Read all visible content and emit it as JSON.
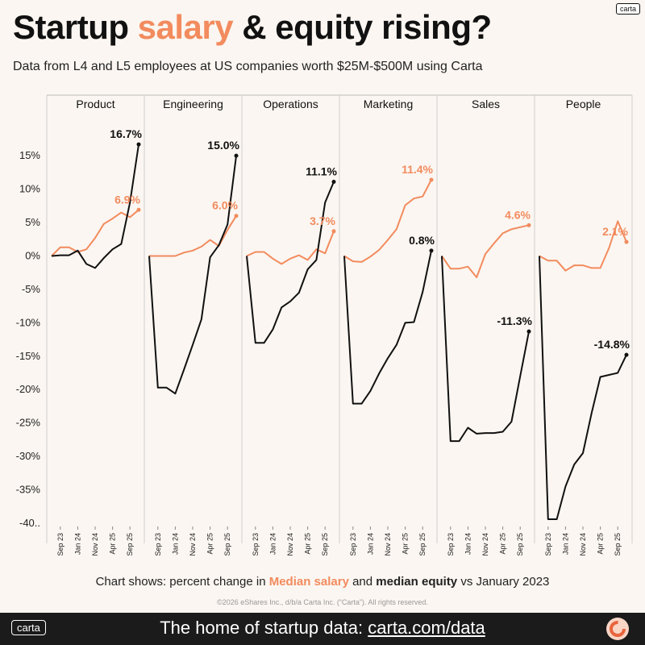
{
  "header": {
    "logo_text": "carta",
    "title_part1": "Startup ",
    "title_accent": "salary",
    "title_part2": " & equity rising?",
    "subtitle": "Data from L4 and L5 employees at US companies worth $25M-$500M using Carta"
  },
  "caption": {
    "prefix": "Chart shows: percent change in ",
    "salary_label": "Median salary",
    "mid": " and ",
    "equity_label": "median equity",
    "suffix": " vs January 2023"
  },
  "copyright": "©2026 eShares Inc., d/b/a Carta Inc. (“Carta”). All rights reserved.",
  "footer": {
    "logo_text": "carta",
    "text": "The home of startup data: ",
    "link": "carta.com/data"
  },
  "colors": {
    "salary": "#f28b5e",
    "equity": "#111111",
    "background": "#fbf6f1"
  },
  "chart_data": {
    "type": "line",
    "ylim": [
      -40,
      19
    ],
    "y_ticks": [
      15,
      10,
      5,
      0,
      -5,
      -10,
      -15,
      -20,
      -25,
      -30,
      -35,
      -40
    ],
    "y_tick_labels": [
      "15%",
      "10%",
      "5%",
      "0%",
      "-5%",
      "-10%",
      "-15%",
      "-20%",
      "-25%",
      "-30%",
      "-35%",
      "-40.."
    ],
    "x_tick_labels": [
      "Sep 23",
      "Jan 24",
      "Nov 24",
      "Apr 25",
      "Sep 25"
    ],
    "x_tick_positions": [
      1,
      3,
      5,
      7,
      9
    ],
    "num_points": 11,
    "grid": false,
    "legend": "caption below chart",
    "panels": [
      {
        "name": "Product",
        "salary": [
          0,
          1.3,
          1.3,
          0.6,
          1,
          2.7,
          4.8,
          5.6,
          6.5,
          5.8,
          6.9
        ],
        "equity": [
          0,
          0.1,
          0.1,
          0.8,
          -1.2,
          -1.8,
          -0.3,
          1,
          1.8,
          8,
          16.7
        ],
        "salary_label": "6.9%",
        "equity_label": "16.7%"
      },
      {
        "name": "Engineering",
        "salary": [
          0,
          0,
          0,
          0,
          0.5,
          0.8,
          1.4,
          2.4,
          1.5,
          3.9,
          6.0
        ],
        "equity": [
          0,
          -19.7,
          -19.7,
          -20.6,
          -17,
          -13.3,
          -9.5,
          -0.2,
          1.6,
          4.7,
          15.0
        ],
        "salary_label": "6.0%",
        "equity_label": "15.0%"
      },
      {
        "name": "Operations",
        "salary": [
          0,
          0.6,
          0.6,
          -0.4,
          -1.2,
          -0.4,
          0.1,
          -0.6,
          1,
          0.4,
          3.7
        ],
        "equity": [
          0,
          -13,
          -13,
          -11,
          -7.7,
          -6.8,
          -5.5,
          -2,
          -0.6,
          8,
          11.1
        ],
        "salary_label": "3.7%",
        "equity_label": "11.1%"
      },
      {
        "name": "Marketing",
        "salary": [
          0,
          -0.8,
          -0.9,
          -0.1,
          0.9,
          2.4,
          4,
          7.6,
          8.6,
          8.9,
          11.4
        ],
        "equity": [
          0,
          -22.1,
          -22.1,
          -20.2,
          -17.6,
          -15.3,
          -13.3,
          -10,
          -9.9,
          -5.4,
          0.8
        ],
        "salary_label": "11.4%",
        "equity_label": "0.8%"
      },
      {
        "name": "Sales",
        "salary": [
          0,
          -1.9,
          -1.9,
          -1.6,
          -3.2,
          0.3,
          1.9,
          3.4,
          4,
          4.3,
          4.6
        ],
        "equity": [
          0,
          -27.7,
          -27.7,
          -25.7,
          -26.6,
          -26.5,
          -26.5,
          -26.3,
          -24.8,
          -18,
          -11.3
        ],
        "salary_label": "4.6%",
        "equity_label": "-11.3%"
      },
      {
        "name": "People",
        "salary": [
          0,
          -0.7,
          -0.7,
          -2.2,
          -1.4,
          -1.4,
          -1.8,
          -1.8,
          1.2,
          5.2,
          2.1
        ],
        "equity": [
          0,
          -39.4,
          -39.4,
          -34.5,
          -31.2,
          -29.5,
          -23.5,
          -18.1,
          -17.8,
          -17.5,
          -14.8
        ],
        "salary_label": "2.1%",
        "equity_label": "-14.8%"
      }
    ]
  }
}
